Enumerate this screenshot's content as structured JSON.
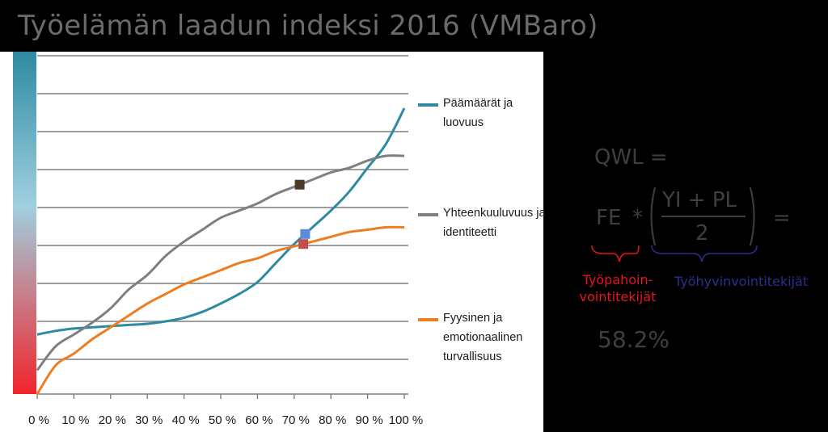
{
  "slide": {
    "title": "Työelämän laadun indeksi 2016 (VMBaro)"
  },
  "formula": {
    "line1": "QWL  =",
    "fe": "FE",
    "times": "*",
    "numerator": "YI + PL",
    "denominator": "2",
    "equals": "=",
    "fe_caption": "Työpahoin-\nvointitekijät",
    "wellbeing_caption": "Työhyvinvointitekijät",
    "result": "58.2%",
    "colors": {
      "text": "#3f3f3f",
      "fe_caption": "#e8141e",
      "wellbeing_caption": "#2a2f8f"
    }
  },
  "chart_data": {
    "type": "line",
    "x_tick_labels": [
      "0 %",
      "10 %",
      "20 %",
      "30 %",
      "40 %",
      "50 %",
      "60 %",
      "70 %",
      "80 %",
      "90 %",
      "100 %"
    ],
    "xlim": [
      0,
      100
    ],
    "grid": "horizontal",
    "legend_position": "right",
    "color_scale": {
      "top": "#2e8aa1",
      "middle": "#9fd0e0",
      "bottom": "#f2242b"
    },
    "x": [
      0,
      5,
      10,
      15,
      20,
      25,
      30,
      35,
      40,
      45,
      50,
      55,
      60,
      65,
      70,
      75,
      80,
      85,
      90,
      95,
      100
    ],
    "series": [
      {
        "name": "Päämäärät ja luovuus",
        "color": "#2e8aa1",
        "values": [
          0.25,
          0.265,
          0.275,
          0.28,
          0.285,
          0.29,
          0.295,
          0.305,
          0.32,
          0.345,
          0.38,
          0.42,
          0.47,
          0.55,
          0.63,
          0.7,
          0.77,
          0.85,
          0.95,
          1.05,
          1.2
        ]
      },
      {
        "name": "Yhteenkuuluvuus ja identiteetti",
        "color": "#7f7f7f",
        "values": [
          0.1,
          0.2,
          0.25,
          0.3,
          0.36,
          0.44,
          0.5,
          0.58,
          0.64,
          0.69,
          0.74,
          0.77,
          0.8,
          0.84,
          0.87,
          0.9,
          0.93,
          0.95,
          0.98,
          1.0,
          1.0
        ]
      },
      {
        "name": "Fyysinen ja emotionaalinen turvallisuus",
        "color": "#ed7d1f",
        "values": [
          0.0,
          0.12,
          0.17,
          0.23,
          0.28,
          0.33,
          0.38,
          0.42,
          0.46,
          0.49,
          0.52,
          0.55,
          0.57,
          0.6,
          0.62,
          0.64,
          0.66,
          0.68,
          0.69,
          0.7,
          0.7
        ]
      }
    ],
    "markers": [
      {
        "series": "Päämäärät ja luovuus",
        "x": 73,
        "color": "#5b8bd9"
      },
      {
        "series": "Yhteenkuuluvuus ja identiteetti",
        "x": 71.5,
        "color": "#4a3a26"
      },
      {
        "series": "Fyysinen ja emotionaalinen turvallisuus",
        "x": 72.5,
        "color": "#c0504d"
      }
    ]
  }
}
